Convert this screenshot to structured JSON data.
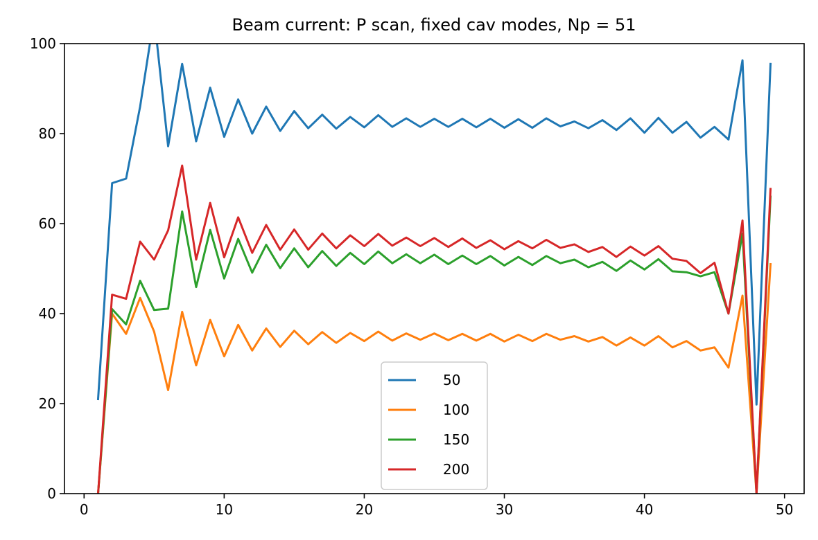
{
  "chart_data": {
    "type": "line",
    "title": "Beam current: P scan, fixed cav modes, Np = 51",
    "xlabel": "",
    "ylabel": "",
    "xlim": [
      -1.4,
      51.4
    ],
    "ylim": [
      0,
      100
    ],
    "xticks": [
      0,
      10,
      20,
      30,
      40,
      50
    ],
    "yticks": [
      0,
      20,
      40,
      60,
      80,
      100
    ],
    "grid": false,
    "legend_position": "lower center",
    "x": [
      1,
      2,
      3,
      4,
      5,
      6,
      7,
      8,
      9,
      10,
      11,
      12,
      13,
      14,
      15,
      16,
      17,
      18,
      19,
      20,
      21,
      22,
      23,
      24,
      25,
      26,
      27,
      28,
      29,
      30,
      31,
      32,
      33,
      34,
      35,
      36,
      37,
      38,
      39,
      40,
      41,
      42,
      43,
      44,
      45,
      46,
      47,
      48,
      49
    ],
    "series": [
      {
        "name": "50",
        "color": "#1f77b4",
        "values": [
          21,
          69,
          70,
          86,
          106,
          77.2,
          95.5,
          78.3,
          90.2,
          79.3,
          87.6,
          80,
          86,
          80.6,
          85,
          81.2,
          84.2,
          81.1,
          83.7,
          81.4,
          84.1,
          81.5,
          83.4,
          81.5,
          83.3,
          81.5,
          83.3,
          81.4,
          83.3,
          81.3,
          83.2,
          81.3,
          83.4,
          81.6,
          82.7,
          81.2,
          83,
          80.8,
          83.4,
          80.2,
          83.5,
          80.2,
          82.6,
          79.1,
          81.5,
          78.7,
          96.3,
          19.8,
          95.5
        ]
      },
      {
        "name": "100",
        "color": "#ff7f0e",
        "values": [
          0,
          40,
          35.5,
          43.5,
          36,
          23,
          40.4,
          28.5,
          38.6,
          30.5,
          37.5,
          31.8,
          36.7,
          32.6,
          36.2,
          33.2,
          35.9,
          33.5,
          35.7,
          33.9,
          36,
          34,
          35.6,
          34.2,
          35.6,
          34.1,
          35.5,
          34,
          35.5,
          33.8,
          35.3,
          33.9,
          35.5,
          34.2,
          35,
          33.8,
          34.8,
          32.9,
          34.7,
          32.9,
          35,
          32.5,
          33.9,
          31.8,
          32.5,
          28,
          44,
          0,
          51
        ]
      },
      {
        "name": "150",
        "color": "#2ca02c",
        "values": [
          0,
          41,
          37.6,
          47.3,
          40.8,
          41.1,
          62.7,
          45.9,
          58.6,
          47.8,
          56.6,
          49.1,
          55.3,
          50.1,
          54.5,
          50.3,
          53.9,
          50.6,
          53.5,
          51,
          53.8,
          51.2,
          53.2,
          51.2,
          53.1,
          51,
          52.9,
          51,
          52.8,
          50.7,
          52.6,
          50.8,
          52.8,
          51.2,
          52,
          50.3,
          51.5,
          49.5,
          51.8,
          49.8,
          52.1,
          49.4,
          49.2,
          48.3,
          49.2,
          40,
          57.8,
          0,
          66
        ]
      },
      {
        "name": "200",
        "color": "#d62728",
        "values": [
          0,
          44.2,
          43.3,
          56,
          52,
          58.5,
          72.9,
          52,
          64.6,
          52.5,
          61.4,
          53.5,
          59.7,
          54.2,
          58.7,
          54.2,
          57.8,
          54.5,
          57.4,
          55,
          57.7,
          55.1,
          56.9,
          55,
          56.8,
          54.8,
          56.7,
          54.6,
          56.3,
          54.3,
          56.1,
          54.5,
          56.4,
          54.6,
          55.4,
          53.7,
          54.8,
          52.6,
          54.9,
          52.9,
          55,
          52.2,
          51.7,
          49,
          51.3,
          40,
          60.7,
          0,
          67.7
        ]
      }
    ]
  }
}
